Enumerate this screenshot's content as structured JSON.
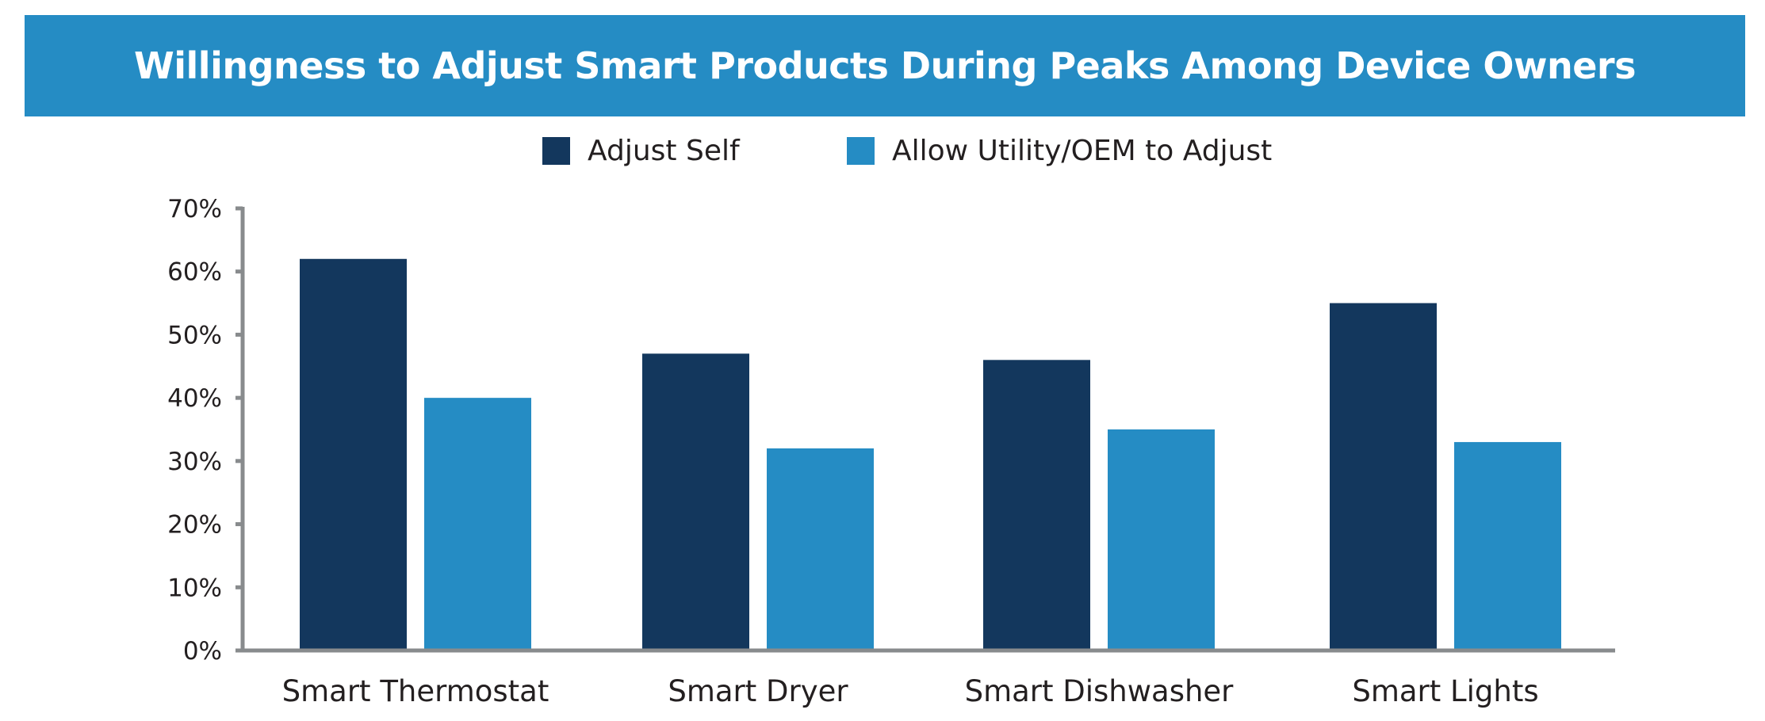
{
  "chart_data": {
    "type": "bar",
    "title": "Willingness to Adjust Smart Products During Peaks Among Device Owners",
    "xlabel": "",
    "ylabel": "",
    "categories": [
      "Smart Thermostat",
      "Smart Dryer",
      "Smart Dishwasher",
      "Smart Lights"
    ],
    "series": [
      {
        "name": "Adjust Self",
        "color": "#13375d",
        "values": [
          62,
          47,
          46,
          55
        ]
      },
      {
        "name": "Allow Utility/OEM to Adjust",
        "color": "#258cc4",
        "values": [
          40,
          32,
          35,
          33
        ]
      }
    ],
    "ylim": [
      0,
      70
    ],
    "yticks": [
      0,
      10,
      20,
      30,
      40,
      50,
      60,
      70
    ],
    "ytick_labels": [
      "0%",
      "10%",
      "20%",
      "30%",
      "40%",
      "50%",
      "60%",
      "70%"
    ],
    "value_format": "percent",
    "grid": false,
    "legend_position": "top-center"
  },
  "colors": {
    "banner": "#258cc4",
    "title_text": "#ffffff",
    "axis": "#888b8d",
    "text": "#231f20"
  }
}
